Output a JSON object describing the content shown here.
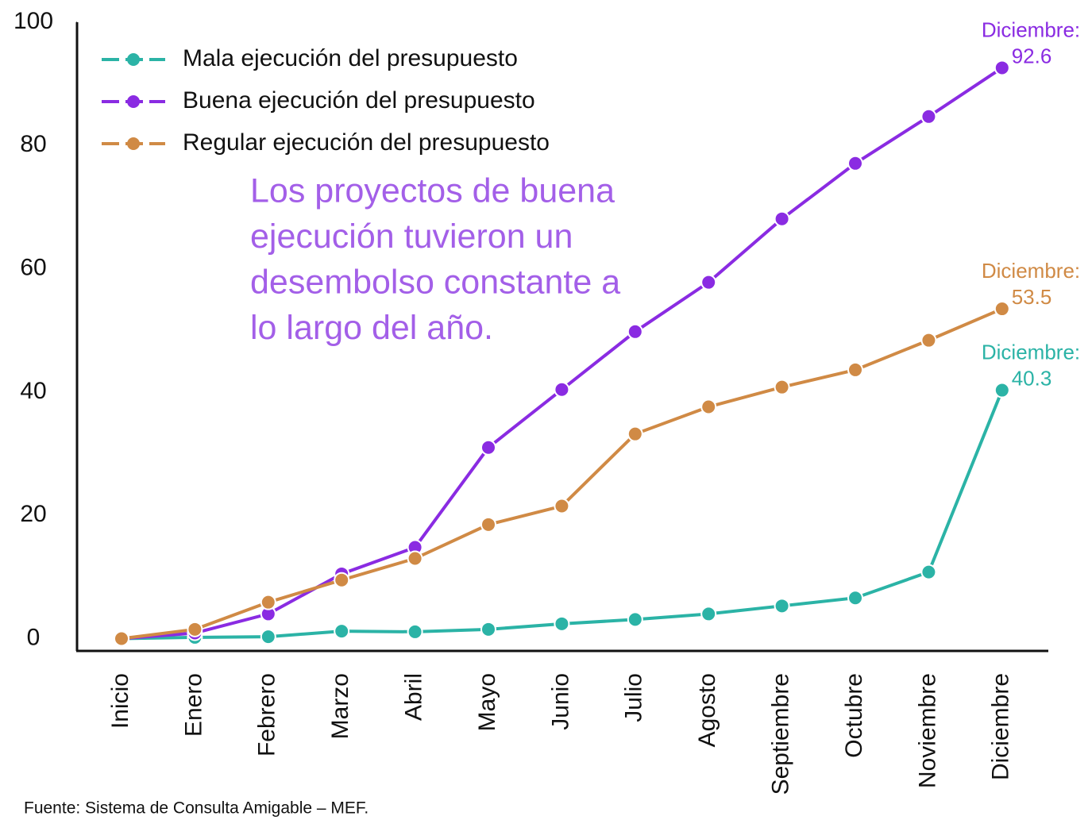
{
  "chart_data": {
    "type": "line",
    "categories": [
      "Inicio",
      "Enero",
      "Febrero",
      "Marzo",
      "Abril",
      "Mayo",
      "Junio",
      "Julio",
      "Agosto",
      "Septiembre",
      "Octubre",
      "Noviembre",
      "Diciembre"
    ],
    "series": [
      {
        "name": "Mala ejecución del presupuesto",
        "color": "#2bb3a6",
        "end_label": "Diciembre:",
        "values": [
          0,
          0.2,
          0.3,
          1.2,
          1.1,
          1.5,
          2.4,
          3.1,
          4,
          5.3,
          6.6,
          10.8,
          40.3
        ]
      },
      {
        "name": "Buena ejecución del presupuesto",
        "color": "#8a2be2",
        "end_label": "Diciembre:",
        "values": [
          0,
          0.9,
          4,
          10.5,
          14.8,
          31,
          40.4,
          49.8,
          57.8,
          68.1,
          77.1,
          84.7,
          92.6
        ]
      },
      {
        "name": "Regular ejecución del presupuesto",
        "color": "#d08a45",
        "end_label": "Diciembre:",
        "values": [
          0,
          1.5,
          5.9,
          9.5,
          13,
          18.5,
          21.5,
          33.2,
          37.6,
          40.8,
          43.6,
          48.4,
          53.5
        ]
      }
    ],
    "ylim": [
      -2,
      100
    ],
    "yticks": [
      0,
      20,
      40,
      60,
      80,
      100
    ],
    "annotation": {
      "color": "#a35fe8",
      "lines": [
        "Los proyectos de buena",
        "ejecución tuvieron un",
        "desembolso constante a",
        "lo largo del año."
      ]
    },
    "source": "Fuente: Sistema de Consulta Amigable – MEF."
  }
}
